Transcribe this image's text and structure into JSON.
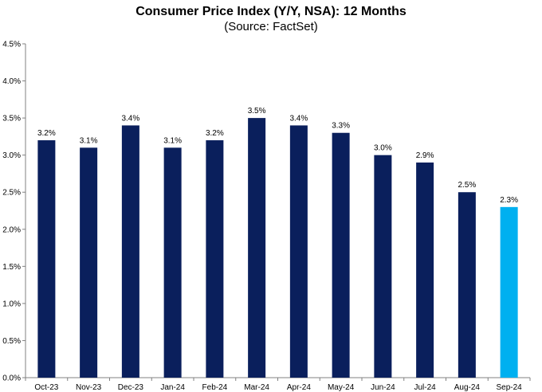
{
  "chart_data": {
    "type": "bar",
    "title": "Consumer Price Index (Y/Y, NSA): 12 Months",
    "subtitle": "(Source: FactSet)",
    "xlabel": "",
    "ylabel": "",
    "ylim": [
      0,
      4.5
    ],
    "ytick_step": 0.5,
    "ytick_labels": [
      "0.0%",
      "0.5%",
      "1.0%",
      "1.5%",
      "2.0%",
      "2.5%",
      "3.0%",
      "3.5%",
      "4.0%",
      "4.5%"
    ],
    "grid": false,
    "categories": [
      "Oct-23",
      "Nov-23",
      "Dec-23",
      "Jan-24",
      "Feb-24",
      "Mar-24",
      "Apr-24",
      "May-24",
      "Jun-24",
      "Jul-24",
      "Aug-24",
      "Sep-24"
    ],
    "values": [
      3.2,
      3.1,
      3.4,
      3.1,
      3.2,
      3.5,
      3.4,
      3.3,
      3.0,
      2.9,
      2.5,
      2.3
    ],
    "data_labels": [
      "3.2%",
      "3.1%",
      "3.4%",
      "3.1%",
      "3.2%",
      "3.5%",
      "3.4%",
      "3.3%",
      "3.0%",
      "2.9%",
      "2.5%",
      "2.3%"
    ],
    "colors": {
      "bar": "#0a1f5c",
      "highlight_bar": "#00b0f0",
      "axis": "#808080"
    },
    "highlight_index": 11
  }
}
